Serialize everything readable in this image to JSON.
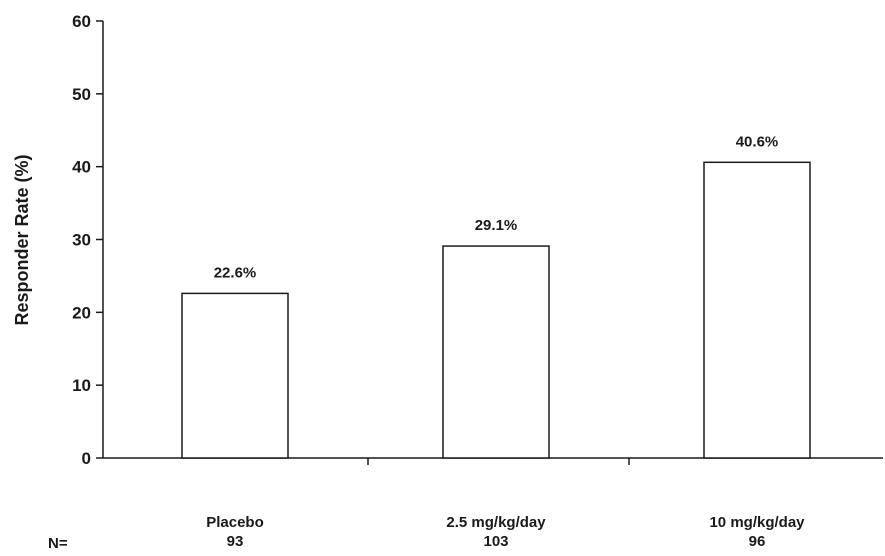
{
  "chart_data": {
    "type": "bar",
    "ylabel": "Responder Rate (%)",
    "ylim": [
      0,
      60
    ],
    "yticks": [
      0,
      10,
      20,
      30,
      40,
      50,
      60
    ],
    "grid": false,
    "categories": [
      "Placebo",
      "2.5 mg/kg/day",
      "10 mg/kg/day"
    ],
    "n_prefix": "N=",
    "n_values": [
      "93",
      "103",
      "96"
    ],
    "values": [
      22.6,
      29.1,
      40.6
    ],
    "data_labels": [
      "22.6%",
      "29.1%",
      "40.6%"
    ]
  }
}
